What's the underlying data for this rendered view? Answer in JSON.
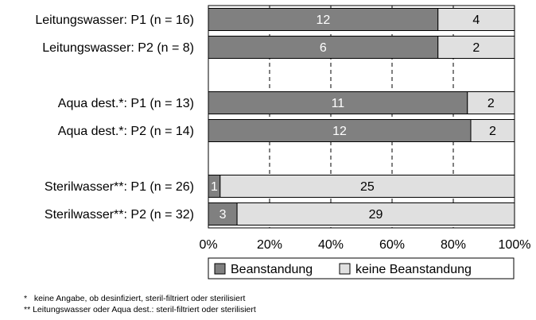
{
  "chart_data": {
    "type": "bar",
    "orientation": "horizontal",
    "stacked": true,
    "percent_scale": true,
    "categories": [
      "Leitungswasser: P1 (n = 16)",
      "Leitungswasser: P2 (n = 8)",
      "",
      "Aqua dest.*: P1 (n = 13)",
      "Aqua dest.*: P2 (n = 14)",
      "",
      "Sterilwasser**: P1 (n = 26)",
      "Sterilwasser**: P2 (n = 32)"
    ],
    "series": [
      {
        "name": "Beanstandung",
        "color": "#808080",
        "label_color": "#ffffff",
        "values": [
          12,
          6,
          null,
          11,
          12,
          null,
          1,
          3
        ]
      },
      {
        "name": "keine Beanstandung",
        "color": "#e0e0e0",
        "label_color": "#000000",
        "values": [
          4,
          2,
          null,
          2,
          2,
          null,
          25,
          29
        ]
      }
    ],
    "x_ticks": [
      "0%",
      "20%",
      "40%",
      "60%",
      "80%",
      "100%"
    ],
    "xlim": [
      0,
      100
    ],
    "grid": "dashed vertical",
    "legend_position": "bottom"
  },
  "footnotes": [
    "*   keine Angabe, ob desinfiziert, steril-filtriert oder sterilisiert",
    "** Leitungswasser oder Aqua dest.: steril-filtriert oder sterilisiert"
  ]
}
